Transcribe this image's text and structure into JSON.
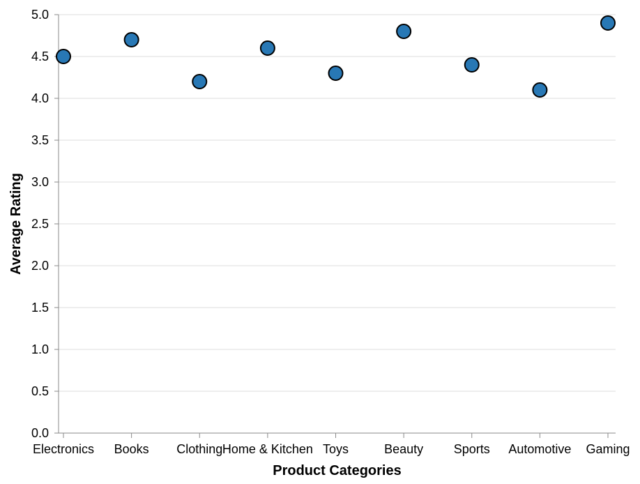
{
  "chart_data": {
    "type": "scatter",
    "title": "",
    "xlabel": "Product Categories",
    "ylabel": "Average Rating",
    "categories": [
      "Electronics",
      "Books",
      "Clothing",
      "Home & Kitchen",
      "Toys",
      "Beauty",
      "Sports",
      "Automotive",
      "Gaming"
    ],
    "values": [
      4.5,
      4.7,
      4.2,
      4.6,
      4.3,
      4.8,
      4.4,
      4.1,
      4.9
    ],
    "ylim": [
      0,
      5
    ],
    "yticks": [
      "0.0",
      "0.5",
      "1.0",
      "1.5",
      "2.0",
      "2.5",
      "3.0",
      "3.5",
      "4.0",
      "4.5",
      "5.0"
    ],
    "grid": true,
    "legend": "none",
    "point_color": "#2878b5"
  }
}
